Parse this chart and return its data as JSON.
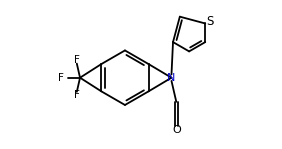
{
  "background_color": "#ffffff",
  "line_color": "#000000",
  "lw": 1.3,
  "figsize": [
    2.82,
    1.49
  ],
  "dpi": 100,
  "xlim": [
    0,
    10
  ],
  "ylim": [
    0,
    5.3
  ]
}
